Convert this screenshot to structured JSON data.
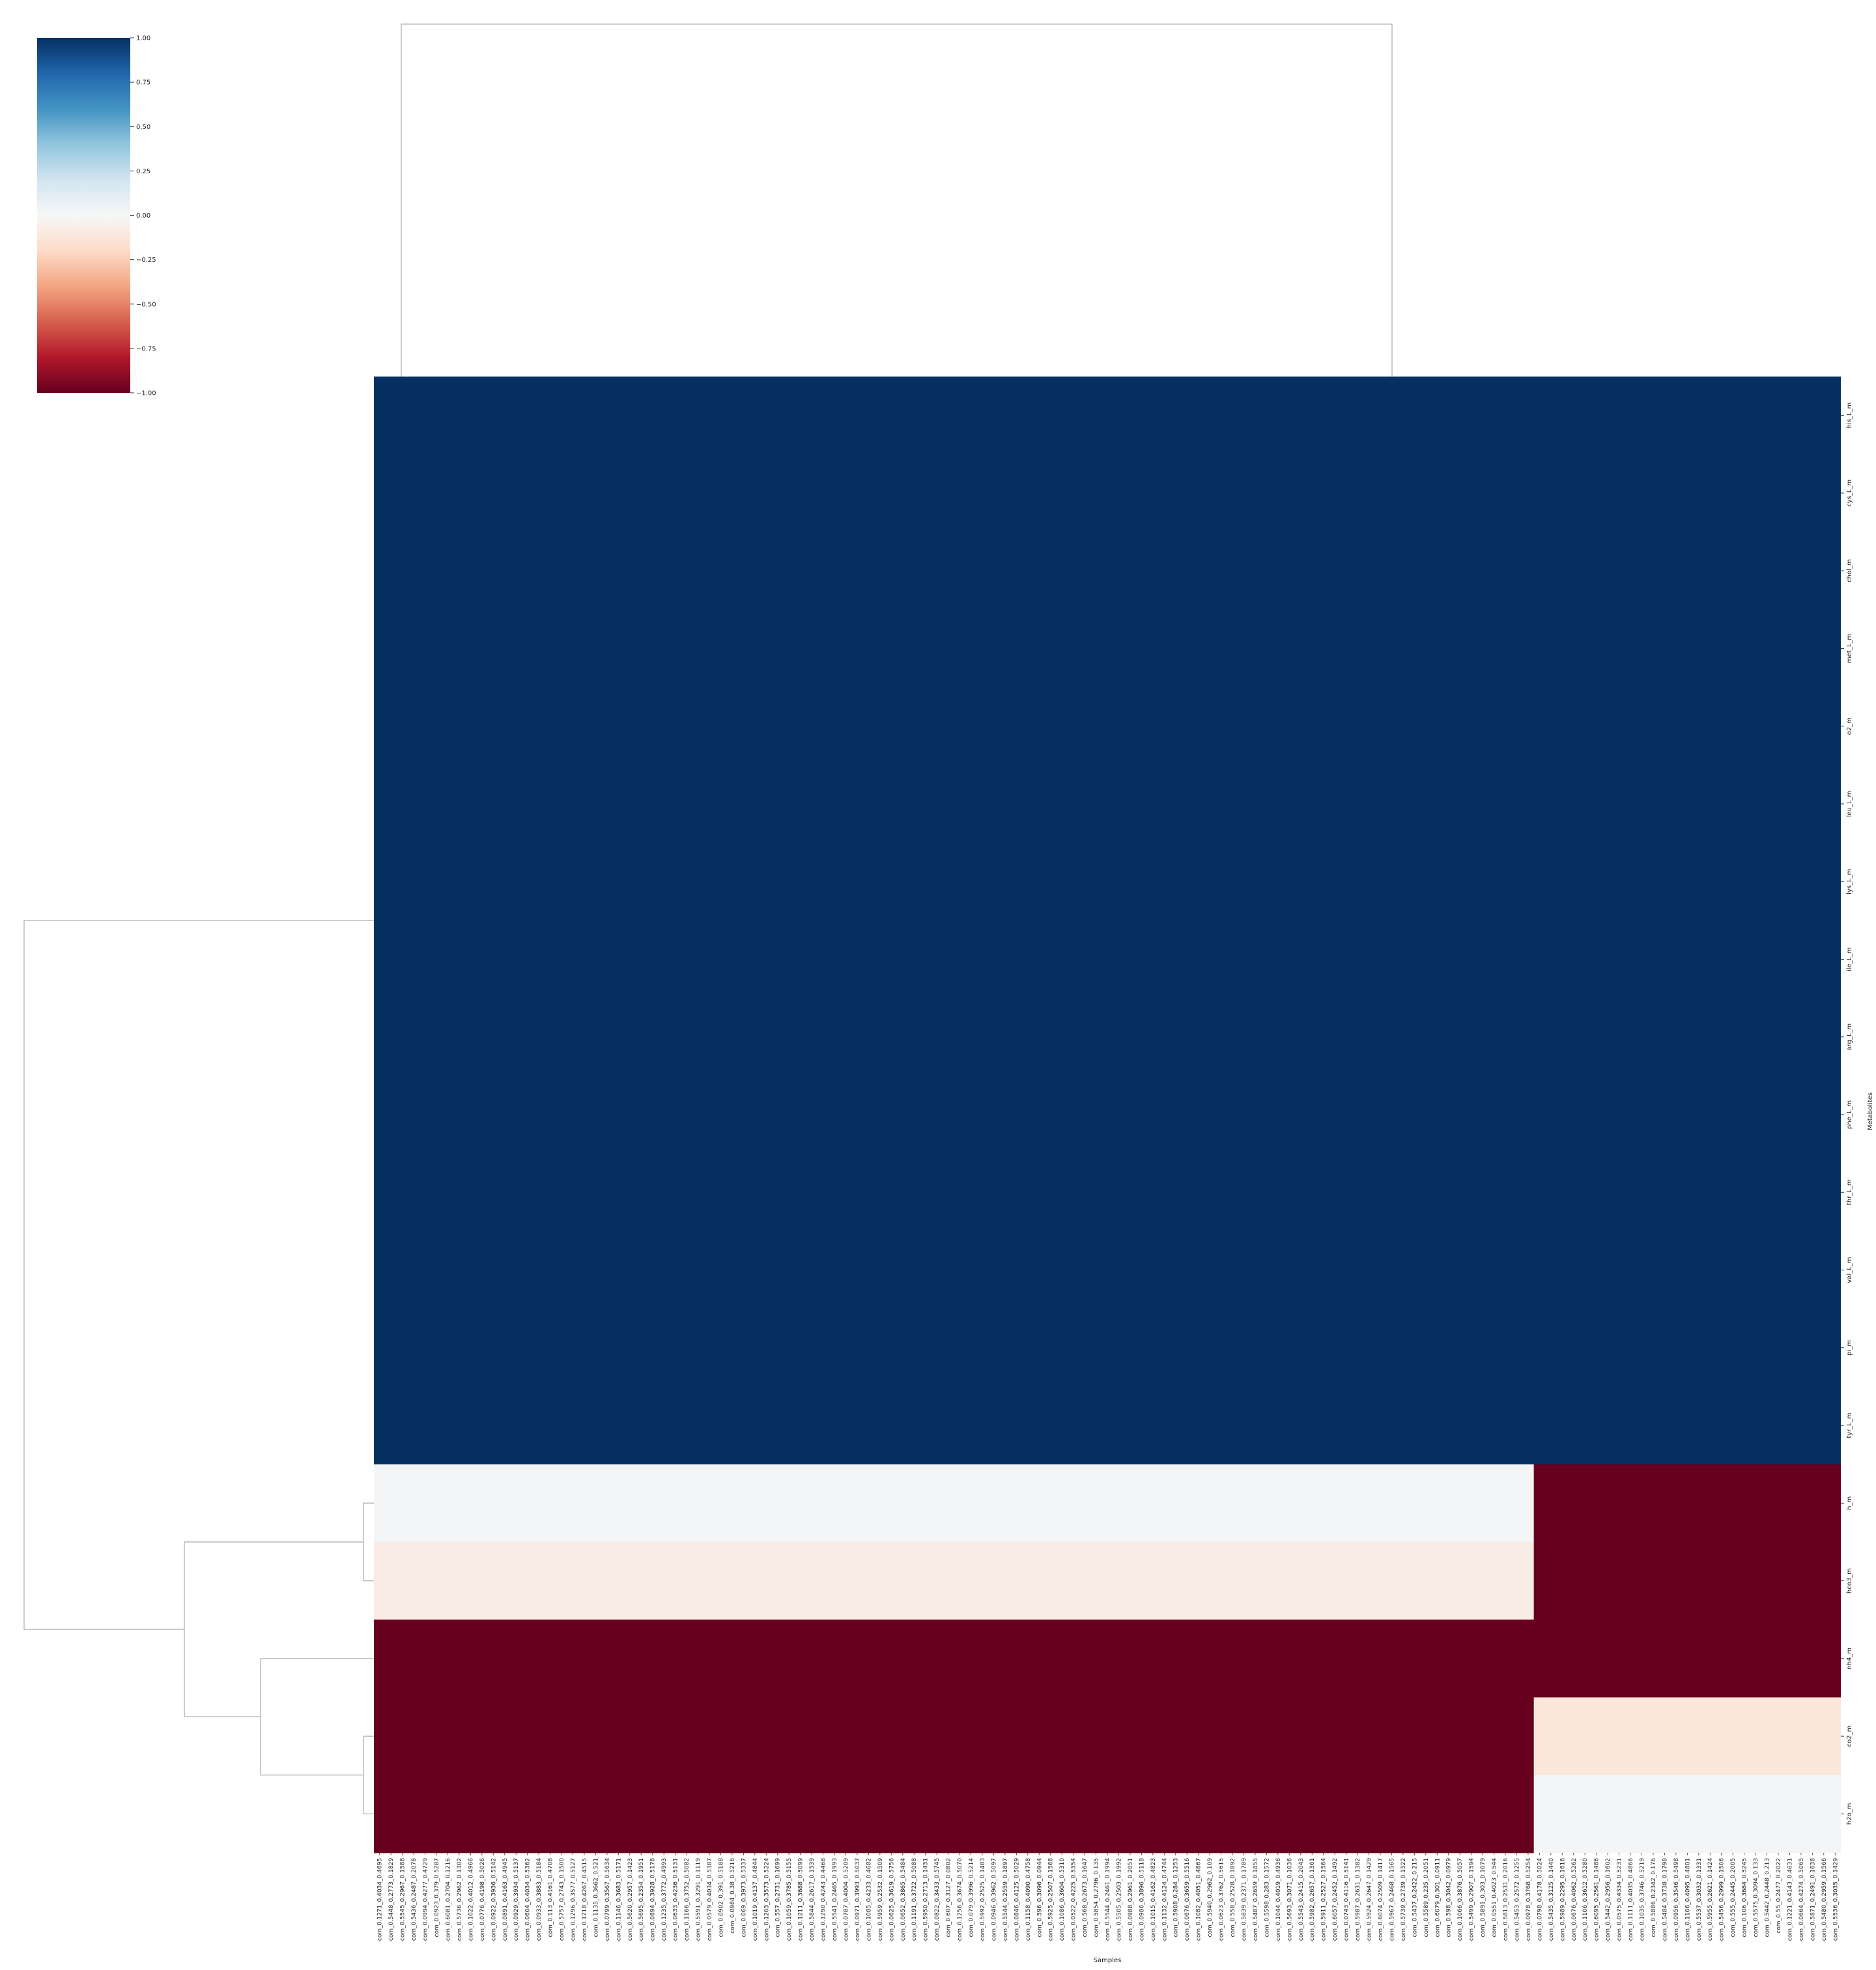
{
  "chart_data": {
    "type": "heatmap",
    "title": "",
    "xlabel": "Samples",
    "ylabel": "Metabolites",
    "colormap": "RdBu",
    "colorbar": {
      "min": -1.0,
      "max": 1.0,
      "ticks": [
        "1.00",
        "0.75",
        "0.50",
        "0.25",
        "0.00",
        "−0.25",
        "−0.50",
        "−0.75",
        "−1.00"
      ],
      "tick_values": [
        1.0,
        0.75,
        0.5,
        0.25,
        0.0,
        -0.25,
        -0.5,
        -0.75,
        -1.0
      ],
      "stops": [
        "#053061",
        "#2166ac",
        "#4393c3",
        "#92c5de",
        "#d1e5f0",
        "#f7f7f7",
        "#fddbc7",
        "#f4a582",
        "#d6604d",
        "#b2182b",
        "#67001f"
      ]
    },
    "rows": [
      "his_L_m",
      "cys_L_m",
      "chol_m",
      "met_L_m",
      "o2_m",
      "leu_L_m",
      "lys_L_m",
      "ile_L_m",
      "arg_L_m",
      "phe_L_m",
      "thr_L_m",
      "val_L_m",
      "pi_m",
      "tyr_L_m",
      "h_m",
      "hco3_m",
      "nh4_m",
      "co2_m",
      "h2o_m"
    ],
    "columns": [
      "com_0.1271_0.4034_0.4695",
      "com_0.5448_0.2773_0.1829",
      "com_0.5545_0.2967_0.1588",
      "com_0.5436_0.2487_0.2078",
      "com_0.0994_0.4277_0.4729",
      "com_0.0923_0.379_0.5287",
      "com_0.6081_0.2704_0.1216",
      "com_0.5736_0.2962_0.1302",
      "com_0.1022_0.4012_0.4966",
      "com_0.0776_0.4198_0.5026",
      "com_0.0922_0.3936_0.5142",
      "com_0.0891_0.4163_0.4945",
      "com_0.0929_0.3934_0.5137",
      "com_0.0604_0.4034_0.5362",
      "com_0.0933_0.3883_0.5184",
      "com_0.113_0.4161_0.4708",
      "com_0.5757_0.2743_0.1500",
      "com_0.1296_0.3577_0.5127",
      "com_0.1218_0.4267_0.4515",
      "com_0.1135_0.3662_0.521",
      "com_0.0799_0.3567_0.5634",
      "com_0.1146_0.3683_0.5171",
      "com_0.5620_0.2957_0.1423",
      "com_0.5695_0.2354_0.1951",
      "com_0.0894_0.3928_0.5178",
      "com_0.1235_0.3772_0.4993",
      "com_0.0633_0.4236_0.5131",
      "com_0.1166_0.3752_0.5082",
      "com_0.5591_0.3291_0.1119",
      "com_0.0579_0.4034_0.5387",
      "com_0.0902_0.391_0.5188",
      "com_0.0984_0.38_0.5216",
      "com_0.069_0.3973_0.5337",
      "com_0.1019_0.4137_0.4844",
      "com_0.1203_0.3573_0.5224",
      "com_0.557_0.2731_0.1699",
      "com_0.1059_0.3785_0.5155",
      "com_0.1211_0.3688_0.5099",
      "com_0.5844_0.2617_0.1539",
      "com_0.1290_0.4243_0.4468",
      "com_0.5541_0.2465_0.1993",
      "com_0.0787_0.4004_0.5209",
      "com_0.0971_0.3993_0.5037",
      "com_0.1085_0.4233_0.4682",
      "com_0.5959_0.2532_0.1509",
      "com_0.0625_0.3619_0.5756",
      "com_0.0652_0.3865_0.5484",
      "com_0.1191_0.3722_0.5088",
      "com_0.5950_0.2713_0.1431",
      "com_0.0822_0.3433_0.5745",
      "com_0.607_0.3127_0.0802",
      "com_0.1256_0.3674_0.5070",
      "com_0.079_0.3996_0.5214",
      "com_0.5992_0.2525_0.1483",
      "com_0.0946_0.3962_0.5097",
      "com_0.5544_0.2559_0.1897",
      "com_0.0846_0.4125_0.5029",
      "com_0.1158_0.4090_0.4758",
      "com_0.596_0.3096_0.0944",
      "com_0.5925_0.2507_0.1568",
      "com_0.1086_0.3604_0.5310",
      "com_0.0522_0.4225_0.5354",
      "com_0.568_0.2673_0.1647",
      "com_0.5854_0.2796_0.135",
      "com_0.5544_0.2461_0.1994",
      "com_0.5505_0.2503_0.1992",
      "com_0.0988_0.2961_0.2051",
      "com_0.0986_0.3896_0.5118",
      "com_0.1015_0.4162_0.4823",
      "com_0.1132_0.4124_0.4744",
      "com_0.5908_0.284_0.1253",
      "com_0.0676_0.3659_0.5516",
      "com_0.1082_0.4051_0.4867",
      "com_0.5940_0.2962_0.109",
      "com_0.0623_0.3762_0.5615",
      "com_0.558_0.2528_0.1892",
      "com_0.5839_0.2371_0.1789",
      "com_0.5487_0.2659_0.1855",
      "com_0.5598_0.283_0.1572",
      "com_0.1044_0.4019_0.4936",
      "com_0.5693_0.3071_0.1036",
      "com_0.5543_0.2415_0.2043",
      "com_0.5982_0.2657_0.1361",
      "com_0.5911_0.2527_0.1564",
      "com_0.6057_0.2452_0.1492",
      "com_0.0743_0.4116_0.5141",
      "com_0.5987_0.2631_0.1382",
      "com_0.5924_0.2647_0.1429",
      "com_0.6074_0.2509_0.1417",
      "com_0.5967_0.2468_0.1565",
      "com_0.5739_0.2739_0.1522",
      "com_0.5437_0.2422_0.215",
      "com_0.5589_0.235_0.2051",
      "com_0.6079_0.301_0.0911",
      "com_0.598_0.3042_0.0979",
      "com_0.1066_0.3876_0.5057",
      "com_0.5499_0.2907_0.1594",
      "com_0.5891_0.303_0.1079",
      "com_0.0551_0.4023_0.544",
      "com_0.5813_0.2531_0.2016",
      "com_0.5453_0.2572_0.1255",
      "com_0.0978_0.3768_0.5254",
      "com_0.0798_0.4178_0.5024",
      "com_0.5435_0.3125_0.1440",
      "com_0.5989_0.2295_0.1616",
      "com_0.0676_0.4062_0.5262",
      "com_0.1106_0.3612_0.5280",
      "com_0.6095_0.2561_0.1486",
      "com_0.5442_0.2956_0.1602",
      "com_0.0575_0.4334_0.5231",
      "com_0.1111_0.4035_0.4866",
      "com_0.1035_0.3746_0.5219",
      "com_0.5886_0.2342_0.176",
      "com_0.5484_0.3738_0.1798",
      "com_0.0956_0.3546_0.5498",
      "com_0.1106_0.4095_0.4801",
      "com_0.5537_0.3032_0.1331",
      "com_0.5955_0.2621_0.1424",
      "com_0.5456_0.2999_0.1506",
      "com_0.555_0.2445_0.2005",
      "com_0.106_0.3684_0.5245",
      "com_0.5575_0.3094_0.133",
      "com_0.5442_0.2448_0.213",
      "com_0.55_0.2477_0.2022",
      "com_0.1221_0.4143_0.4631",
      "com_0.0664_0.4274_0.5065",
      "com_0.5871_0.2491_0.1638",
      "com_0.5480_0.2959_0.1566",
      "com_0.5536_0.3035_0.1429"
    ],
    "column_split_index": 102,
    "blocks": [
      {
        "rows": [
          "his_L_m",
          "cys_L_m",
          "chol_m",
          "met_L_m",
          "o2_m",
          "leu_L_m",
          "lys_L_m",
          "ile_L_m",
          "arg_L_m",
          "phe_L_m",
          "thr_L_m",
          "val_L_m",
          "pi_m",
          "tyr_L_m"
        ],
        "left_value": 1.0,
        "right_value": 1.0
      },
      {
        "rows": [
          "h_m"
        ],
        "left_value": 0.02,
        "right_value": -1.0
      },
      {
        "rows": [
          "hco3_m"
        ],
        "left_value": -0.08,
        "right_value": -1.0
      },
      {
        "rows": [
          "nh4_m"
        ],
        "left_value": -1.0,
        "right_value": -1.0
      },
      {
        "rows": [
          "co2_m"
        ],
        "left_value": -1.0,
        "right_value": -0.12
      },
      {
        "rows": [
          "h2o_m"
        ],
        "left_value": -1.0,
        "right_value": 0.02
      }
    ],
    "row_dendrogram_links": [
      [
        "h_m",
        "hco3_m"
      ],
      [
        "co2_m",
        "h2o_m"
      ],
      [
        "nh4_m",
        "co2_m+h2o_m"
      ],
      [
        "h_m+hco3_m",
        "nh4_m+co2_m+h2o_m"
      ],
      [
        "tyr_L_m..his_L_m",
        "h_m..h2o_m"
      ]
    ]
  }
}
